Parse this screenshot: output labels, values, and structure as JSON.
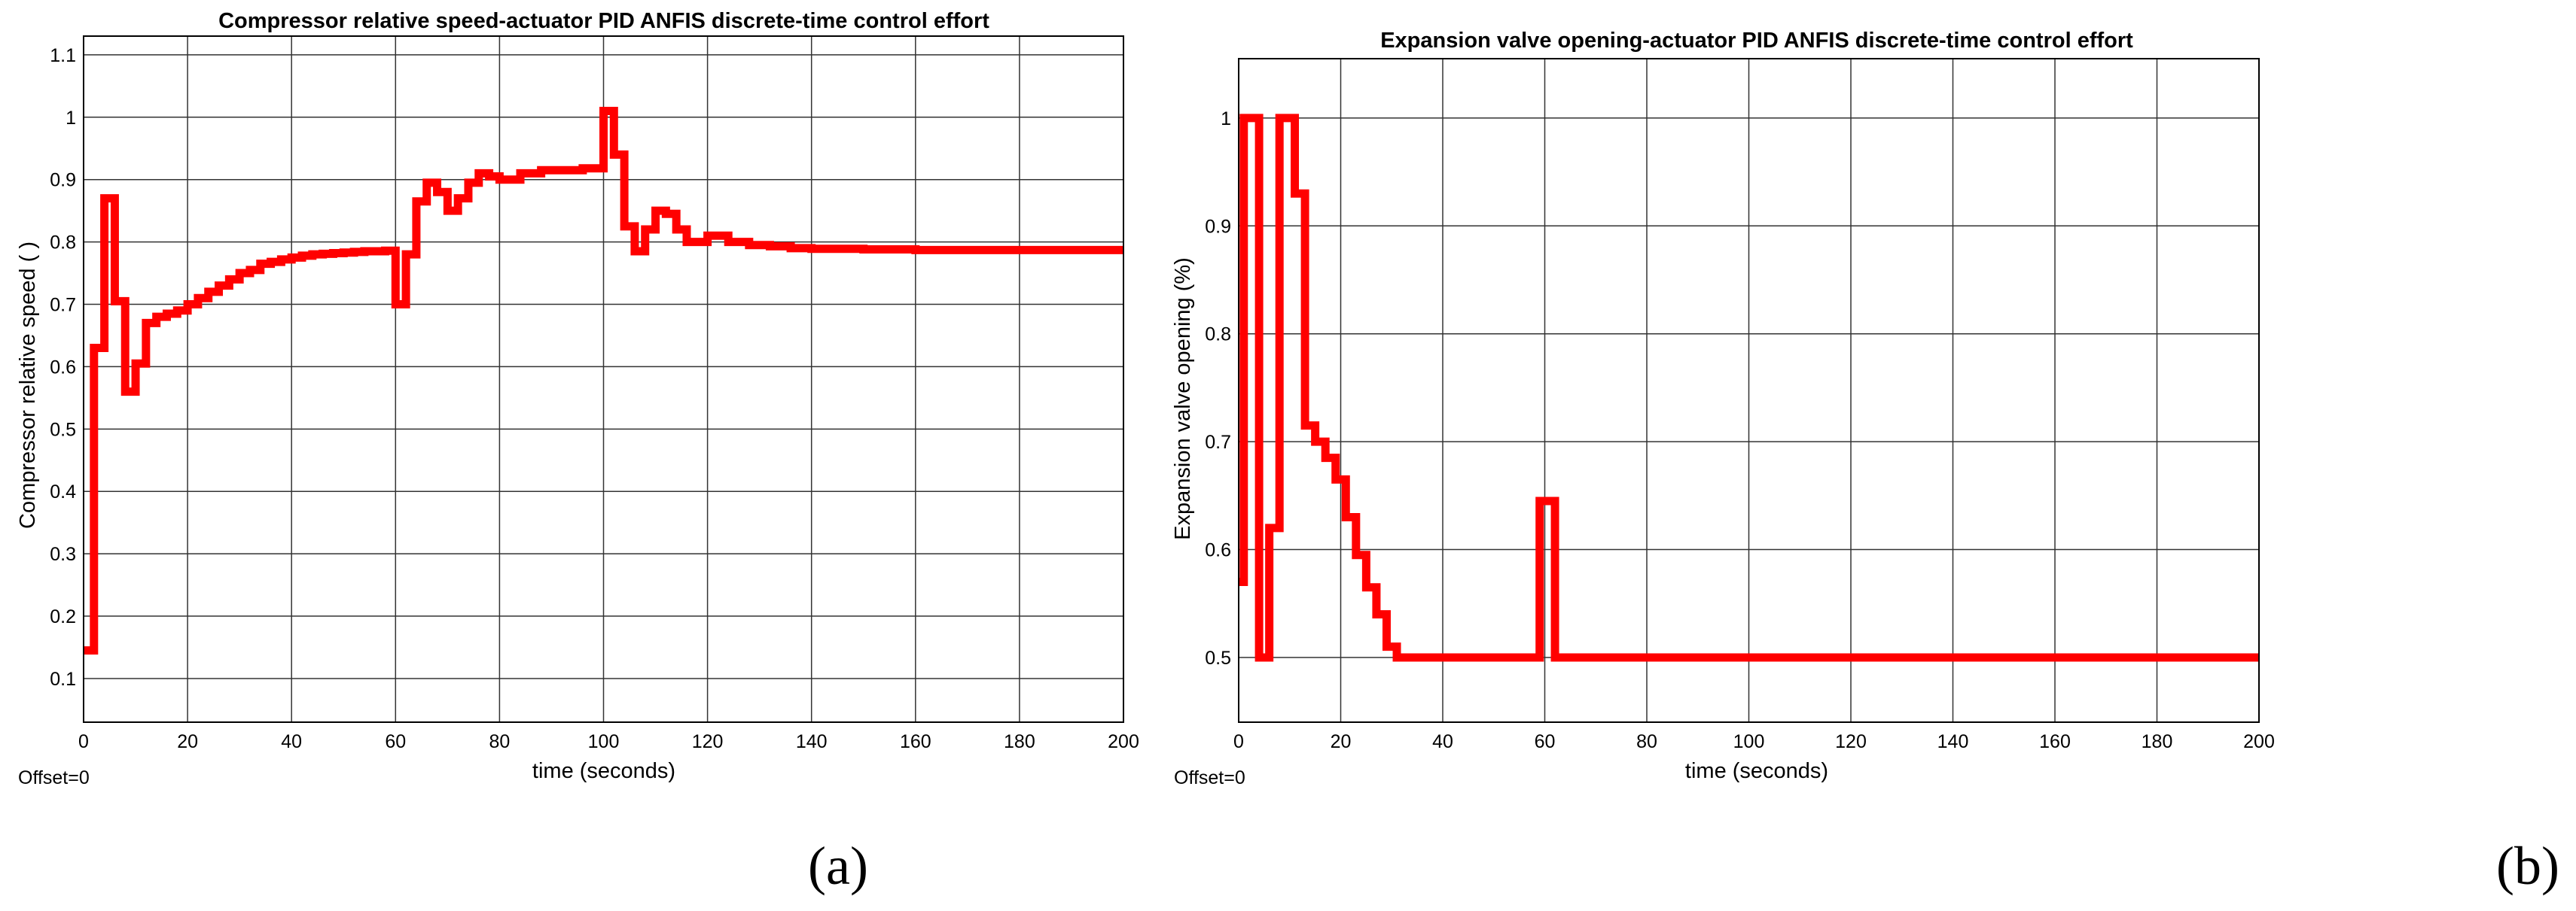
{
  "chart_data": [
    {
      "type": "line",
      "title": "Compressor relative speed-actuator PID ANFIS discrete-time control  effort",
      "xlabel": "time (seconds)",
      "ylabel": "Compressor relative speed ( )",
      "xlim": [
        0,
        200
      ],
      "ylim": [
        0.03,
        1.13
      ],
      "xticks": [
        0,
        20,
        40,
        60,
        80,
        100,
        120,
        140,
        160,
        180,
        200
      ],
      "yticks": [
        0.1,
        0.2,
        0.3,
        0.4,
        0.5,
        0.6,
        0.7,
        0.8,
        0.9,
        1,
        1.1
      ],
      "ytick_labels": [
        "0.1",
        "0.2",
        "0.3",
        "0.4",
        "0.5",
        "0.6",
        "0.7",
        "0.8",
        "0.9",
        "1",
        "1.1"
      ],
      "grid": true,
      "step": true,
      "offset_text": "Offset=0",
      "caption": "(a)",
      "color": "#ff0000",
      "x": [
        0,
        2,
        4,
        6,
        8,
        10,
        12,
        14,
        16,
        18,
        20,
        22,
        24,
        26,
        28,
        30,
        32,
        34,
        36,
        38,
        40,
        42,
        44,
        46,
        48,
        50,
        52,
        54,
        56,
        58,
        60,
        62,
        64,
        66,
        68,
        70,
        72,
        74,
        76,
        78,
        80,
        84,
        88,
        92,
        96,
        100,
        102,
        104,
        106,
        108,
        110,
        112,
        114,
        116,
        120,
        124,
        128,
        132,
        136,
        140,
        150,
        160,
        200
      ],
      "y": [
        0.145,
        0.63,
        0.87,
        0.705,
        0.56,
        0.605,
        0.67,
        0.68,
        0.685,
        0.69,
        0.7,
        0.71,
        0.72,
        0.73,
        0.74,
        0.75,
        0.755,
        0.765,
        0.768,
        0.772,
        0.775,
        0.778,
        0.78,
        0.781,
        0.782,
        0.783,
        0.784,
        0.785,
        0.785,
        0.786,
        0.7,
        0.78,
        0.865,
        0.895,
        0.88,
        0.85,
        0.87,
        0.895,
        0.91,
        0.905,
        0.9,
        0.91,
        0.915,
        0.915,
        0.918,
        1.01,
        0.94,
        0.825,
        0.785,
        0.82,
        0.85,
        0.845,
        0.82,
        0.8,
        0.81,
        0.8,
        0.795,
        0.793,
        0.79,
        0.789,
        0.788,
        0.787,
        0.787
      ]
    },
    {
      "type": "line",
      "title": "Expansion valve opening-actuator PID ANFIS discrete-time control effort",
      "xlabel": "time (seconds)",
      "ylabel": "Expansion valve opening (%)",
      "xlim": [
        0,
        200
      ],
      "ylim": [
        0.44,
        1.055
      ],
      "xticks": [
        0,
        20,
        40,
        60,
        80,
        100,
        120,
        140,
        160,
        180,
        200
      ],
      "yticks": [
        0.5,
        0.6,
        0.7,
        0.8,
        0.9,
        1
      ],
      "ytick_labels": [
        "0.5",
        "0.6",
        "0.7",
        "0.8",
        "0.9",
        "1"
      ],
      "grid": true,
      "step": true,
      "offset_text": "Offset=0",
      "caption": "(b)",
      "color": "#ff0000",
      "x": [
        0,
        1,
        4,
        6,
        8,
        11,
        13,
        15,
        17,
        19,
        21,
        23,
        25,
        27,
        29,
        31,
        59,
        62,
        200
      ],
      "y": [
        0.57,
        1.0,
        0.5,
        0.62,
        1.0,
        0.93,
        0.715,
        0.7,
        0.685,
        0.665,
        0.63,
        0.595,
        0.565,
        0.54,
        0.51,
        0.5,
        0.645,
        0.5,
        0.5
      ]
    }
  ]
}
